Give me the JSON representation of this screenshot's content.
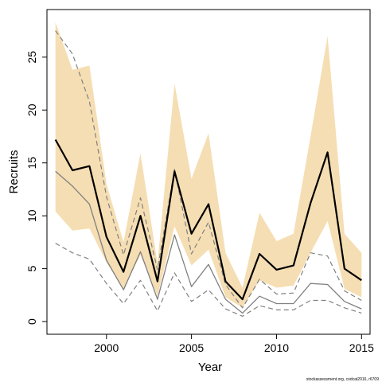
{
  "chart_data": {
    "type": "line",
    "xlabel": "Year",
    "ylabel": "Recruits",
    "xlim": [
      1996.5,
      2015.5
    ],
    "ylim": [
      -1.2,
      29.5
    ],
    "xticks": [
      2000,
      2005,
      2010,
      2015
    ],
    "yticks": [
      0,
      5,
      10,
      15,
      20,
      25
    ],
    "grid": false,
    "legend": "none",
    "credit": "stockassessment.org, codcat2016, r6709",
    "x": [
      1997,
      1998,
      1999,
      2000,
      2001,
      2002,
      2003,
      2004,
      2005,
      2006,
      2007,
      2008,
      2009,
      2010,
      2011,
      2012,
      2013,
      2014,
      2015
    ],
    "band_upper": [
      28.3,
      23.8,
      24.2,
      13.0,
      7.5,
      15.9,
      5.5,
      22.5,
      13.5,
      17.8,
      6.5,
      3.2,
      10.3,
      7.6,
      8.3,
      17.5,
      27.0,
      8.3,
      6.5
    ],
    "band_lower": [
      10.4,
      8.6,
      8.8,
      5.6,
      3.1,
      6.3,
      2.4,
      9.0,
      5.3,
      6.8,
      2.3,
      1.3,
      3.9,
      3.2,
      3.4,
      6.5,
      9.5,
      3.1,
      2.3
    ],
    "colors": {
      "band": "#f5deb3",
      "estimate": "#000000",
      "secondary": "#808080",
      "dashed": "#808080"
    },
    "series": [
      {
        "role": "estimate",
        "values": [
          17.2,
          14.3,
          14.7,
          8.0,
          4.7,
          10.0,
          3.8,
          14.2,
          8.3,
          11.1,
          3.8,
          2.1,
          6.4,
          4.9,
          5.3,
          11.2,
          16.0,
          5.0,
          3.9
        ]
      },
      {
        "role": "secondary",
        "values": [
          14.2,
          12.8,
          11.1,
          5.8,
          3.0,
          6.6,
          2.1,
          8.2,
          3.3,
          5.4,
          2.1,
          0.8,
          2.4,
          1.7,
          1.7,
          3.6,
          3.5,
          1.9,
          1.2
        ]
      },
      {
        "role": "dashed-upper",
        "values": [
          27.5,
          25.3,
          20.8,
          11.8,
          6.3,
          11.7,
          4.9,
          14.4,
          6.4,
          9.4,
          3.5,
          1.3,
          4.0,
          2.6,
          2.7,
          6.5,
          6.2,
          2.9,
          2.0
        ]
      },
      {
        "role": "dashed-lower",
        "values": [
          7.4,
          6.5,
          5.9,
          3.6,
          1.7,
          3.9,
          1.0,
          4.6,
          1.9,
          3.0,
          1.2,
          0.5,
          1.5,
          1.1,
          1.1,
          2.0,
          2.0,
          1.3,
          0.8
        ]
      }
    ]
  }
}
